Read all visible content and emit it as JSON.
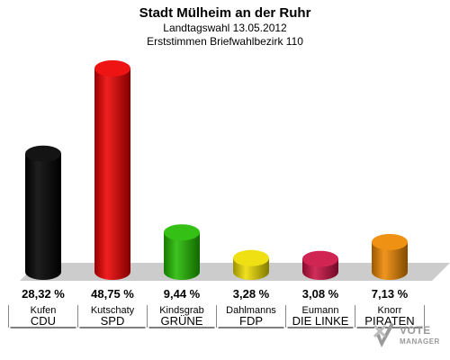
{
  "header": {
    "title": "Stadt Mülheim an der Ruhr",
    "subtitle": "Landtagswahl 13.05.2012",
    "subtitle2": "Erststimmen Briefwahlbezirk 110"
  },
  "watermark": {
    "line1": "VOTE",
    "line2": "MANAGER"
  },
  "chart_data": {
    "type": "bar",
    "title": "Stadt Mülheim an der Ruhr",
    "subtitle": "Landtagswahl 13.05.2012 — Erststimmen Briefwahlbezirk 110",
    "categories": [
      "CDU",
      "SPD",
      "GRÜNE",
      "FDP",
      "DIE LINKE",
      "PIRATEN"
    ],
    "candidates": [
      "Kufen",
      "Kutschaty",
      "Kindsgrab",
      "Dahlmanns",
      "Eumann",
      "Knorr"
    ],
    "values": [
      28.32,
      48.75,
      9.44,
      3.28,
      3.08,
      7.13
    ],
    "labels": [
      "28,32 %",
      "48,75 %",
      "9,44 %",
      "3,28 %",
      "3,08 %",
      "7,13 %"
    ],
    "colors": [
      "#000000",
      "#ee0000",
      "#22bb00",
      "#eedd00",
      "#cc1144",
      "#ee8800"
    ],
    "ylim": [
      0,
      48.75
    ],
    "grid": false,
    "legend": "none"
  }
}
